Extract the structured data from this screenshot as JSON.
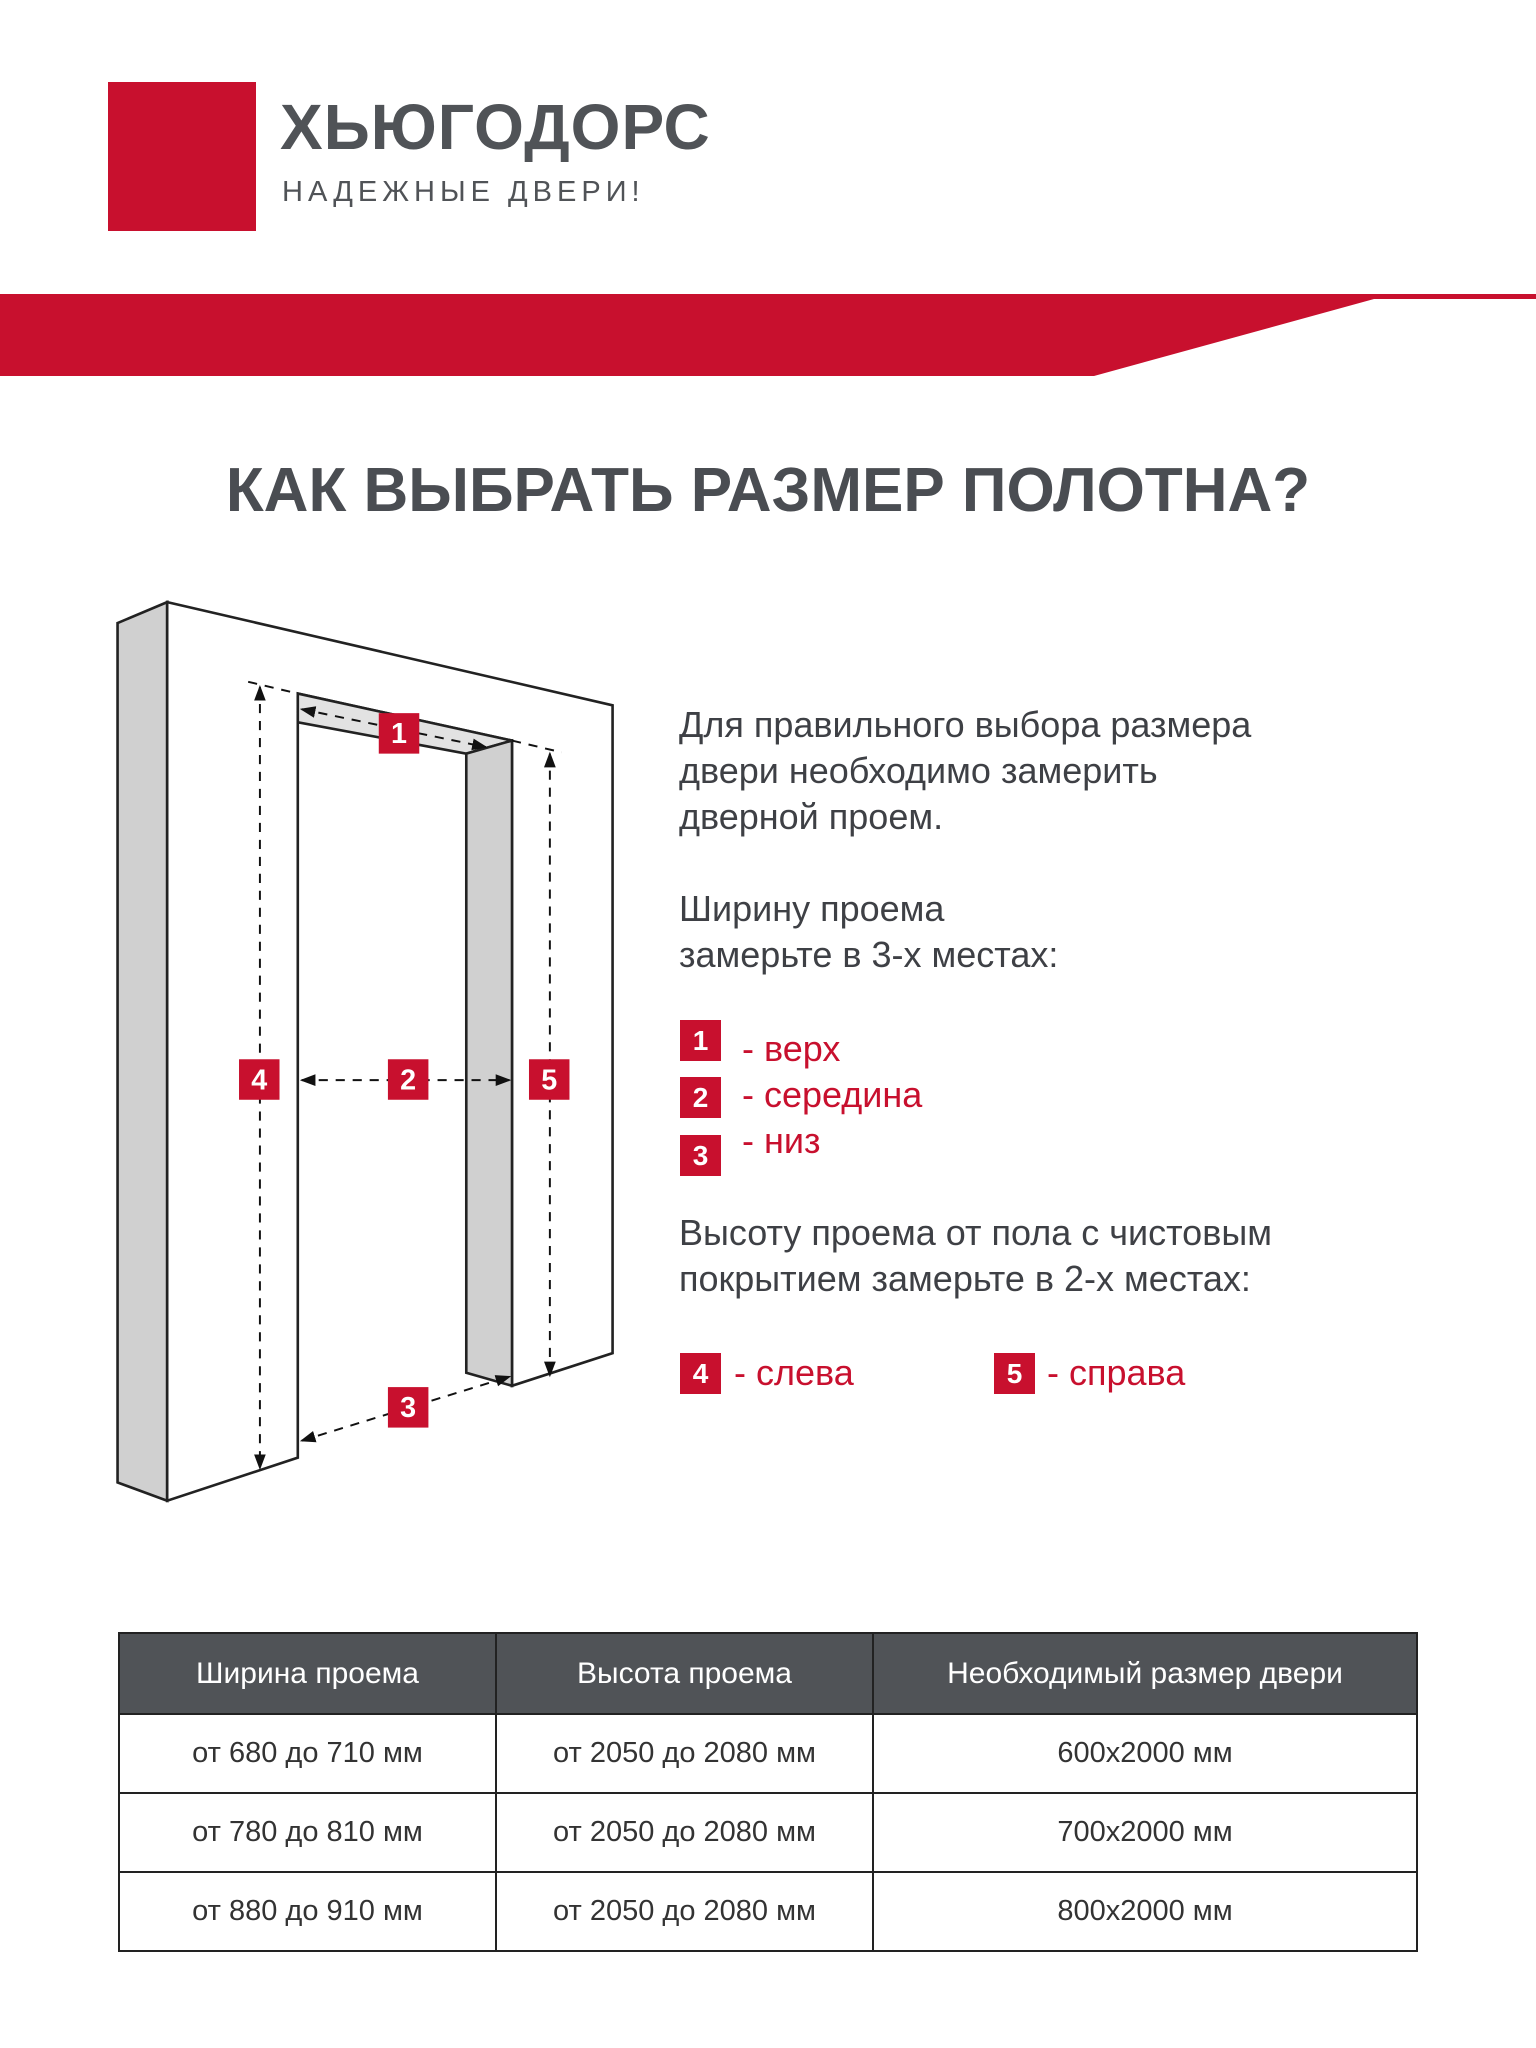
{
  "brand": {
    "name": "ХЬЮГОДОРС",
    "tagline": "НАДЕЖНЫЕ ДВЕРИ!",
    "color": "#c8102e"
  },
  "title": "КАК ВЫБРАТЬ РАЗМЕР ПОЛОТНА?",
  "diagram": {
    "labels": [
      "1",
      "2",
      "3",
      "4",
      "5"
    ]
  },
  "intro": [
    "Для правильного выбора размера",
    "двери необходимо замерить",
    "дверной проем."
  ],
  "width_heading": [
    "Ширину проема",
    "замерьте в 3-х местах:"
  ],
  "width_points": [
    {
      "num": "1",
      "label": "- верх"
    },
    {
      "num": "2",
      "label": "- середина"
    },
    {
      "num": "3",
      "label": "- низ"
    }
  ],
  "height_heading": [
    "Высоту проема от пола с чистовым",
    "покрытием замерьте в 2-х местах:"
  ],
  "height_points": [
    {
      "num": "4",
      "label": "- слева"
    },
    {
      "num": "5",
      "label": "- справа"
    }
  ],
  "table": {
    "headers": [
      "Ширина проема",
      "Высота проема",
      "Необходимый размер двери"
    ],
    "rows": [
      [
        "от 680 до 710 мм",
        "от 2050 до 2080 мм",
        "600х2000 мм"
      ],
      [
        "от 780 до 810 мм",
        "от 2050 до 2080 мм",
        "700х2000 мм"
      ],
      [
        "от 880 до 910 мм",
        "от 2050 до 2080 мм",
        "800х2000 мм"
      ]
    ]
  }
}
